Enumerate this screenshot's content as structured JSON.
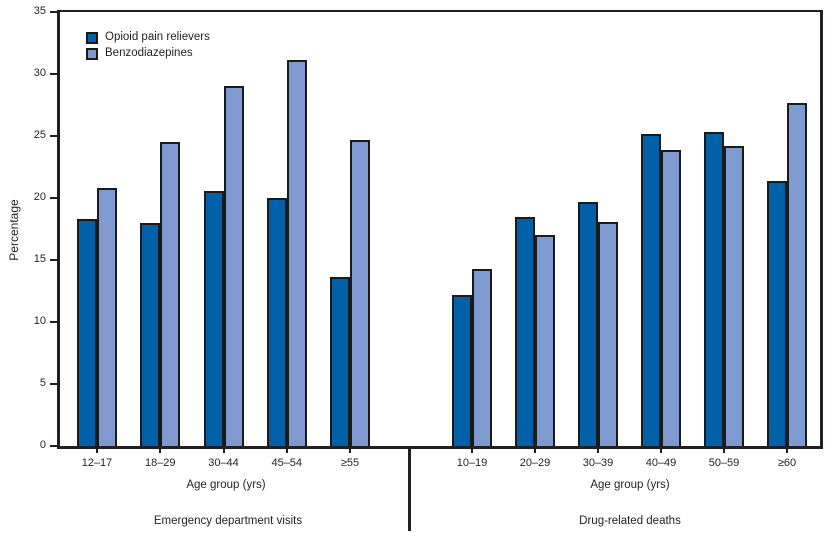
{
  "chart_data": {
    "type": "bar",
    "title": "",
    "ylabel": "Percentage",
    "ylim": [
      0,
      35
    ],
    "yticks": [
      0,
      5,
      10,
      15,
      20,
      25,
      30,
      35
    ],
    "grid": false,
    "legend_position": "top-left",
    "legend": [
      {
        "label": "Opioid pain relievers",
        "color": "#0061A9"
      },
      {
        "label": "Benzodiazepines",
        "color": "#7E9AD0"
      }
    ],
    "bar_outline_color": "#1A1A1A",
    "axis_color": "#231F20",
    "panels": [
      {
        "title": "Emergency department visits",
        "xlabel": "Age group (yrs)",
        "categories": [
          "12–17",
          "18–29",
          "30–44",
          "45–54",
          "≥55"
        ],
        "series": [
          {
            "name": "Opioid pain relievers",
            "values": [
              18.3,
              18.0,
              20.6,
              20.0,
              13.6
            ]
          },
          {
            "name": "Benzodiazepines",
            "values": [
              20.8,
              24.5,
              29.0,
              31.1,
              24.7
            ]
          }
        ]
      },
      {
        "title": "Drug-related deaths",
        "xlabel": "Age group (yrs)",
        "categories": [
          "10–19",
          "20–29",
          "30–39",
          "40–49",
          "50–59",
          "≥60"
        ],
        "series": [
          {
            "name": "Opioid pain relievers",
            "values": [
              12.2,
              18.5,
              19.7,
              25.2,
              25.3,
              21.4
            ]
          },
          {
            "name": "Benzodiazepines",
            "values": [
              14.3,
              17.0,
              18.1,
              23.9,
              24.2,
              27.7
            ]
          }
        ]
      }
    ]
  }
}
